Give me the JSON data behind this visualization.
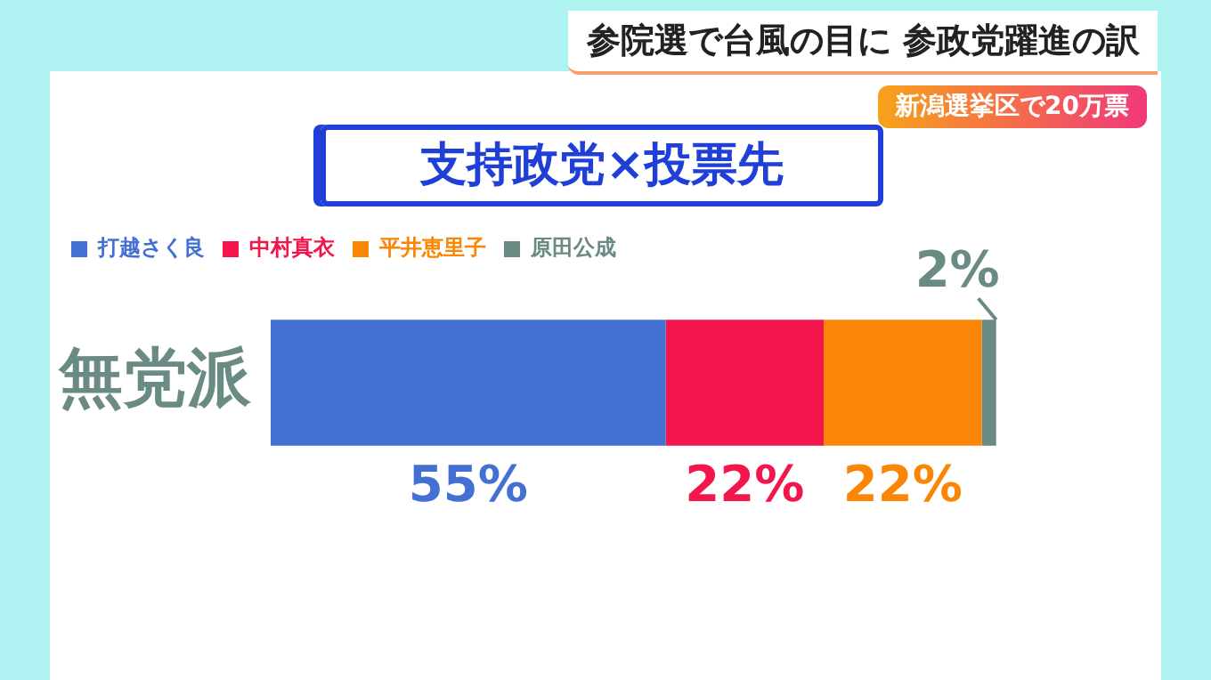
{
  "chart_data": {
    "type": "bar",
    "orientation": "horizontal",
    "stacked": true,
    "title": "支持政党×投票先",
    "annotations": [
      "参院選で台風の目に 参政党躍進の訳",
      "新潟選挙区で20万票"
    ],
    "categories": [
      "無党派"
    ],
    "series": [
      {
        "name": "打越さく良",
        "color": "#4470d4",
        "values": [
          55
        ],
        "value_labels": [
          "55%"
        ]
      },
      {
        "name": "中村真衣",
        "color": "#f2164c",
        "values": [
          22
        ],
        "value_labels": [
          "22%"
        ]
      },
      {
        "name": "平井恵里子",
        "color": "#f98605",
        "values": [
          22
        ],
        "value_labels": [
          "22%"
        ]
      },
      {
        "name": "原田公成",
        "color": "#6a8a84",
        "values": [
          2
        ],
        "value_labels": [
          "2%"
        ]
      }
    ],
    "legend": "top left",
    "tick_labels": "y",
    "grid": false
  }
}
